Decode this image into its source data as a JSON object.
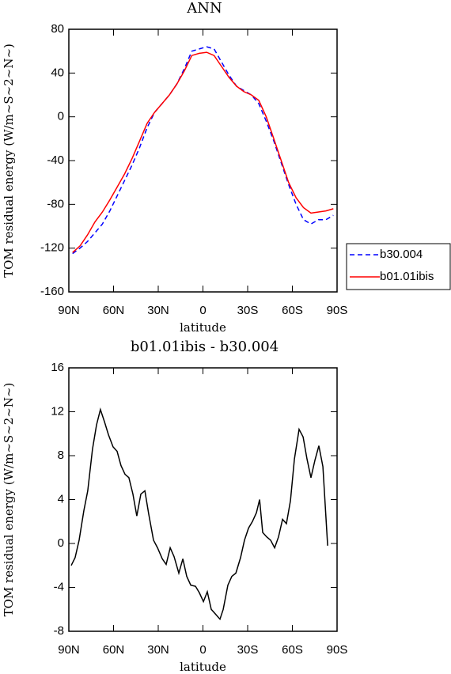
{
  "chart_data": [
    {
      "type": "line",
      "title": "ANN",
      "xlabel": "latitude",
      "ylabel": "TOM residual energy (W/m~S~2~N~)",
      "x": [
        87.5,
        82.5,
        77.5,
        72.5,
        67.5,
        62.5,
        57.5,
        52.5,
        47.5,
        42.5,
        37.5,
        32.5,
        27.5,
        22.5,
        17.5,
        12.5,
        7.5,
        2.5,
        -2.5,
        -7.5,
        -12.5,
        -17.5,
        -22.5,
        -27.5,
        -32.5,
        -37.5,
        -42.5,
        -47.5,
        -52.5,
        -57.5,
        -62.5,
        -67.5,
        -72.5,
        -77.5,
        -82.5,
        -87.5
      ],
      "series": [
        {
          "name": "b30.004",
          "color": "#0000ff",
          "dash": true,
          "values": [
            -125,
            -120,
            -114,
            -106,
            -98,
            -86,
            -72,
            -58,
            -44,
            -28,
            -10,
            4,
            12,
            20,
            30,
            44,
            60,
            62,
            64,
            62,
            50,
            38,
            28,
            24,
            20,
            12,
            -4,
            -22,
            -42,
            -62,
            -80,
            -94,
            -98,
            -94,
            -94,
            -90
          ]
        },
        {
          "name": "b01.01ibis",
          "color": "#ff0000",
          "dash": false,
          "values": [
            -124,
            -118,
            -108,
            -96,
            -87,
            -76,
            -64,
            -52,
            -38,
            -22,
            -6,
            4,
            12,
            20,
            30,
            42,
            56,
            58,
            59,
            56,
            46,
            36,
            28,
            23,
            20,
            15,
            0,
            -20,
            -40,
            -60,
            -74,
            -83,
            -88,
            -87,
            -86,
            -84
          ]
        }
      ],
      "xlim": [
        90,
        -90
      ],
      "xticks": [
        {
          "value": 90,
          "label": "90N"
        },
        {
          "value": 60,
          "label": "60N"
        },
        {
          "value": 30,
          "label": "30N"
        },
        0,
        {
          "value": -30,
          "label": "30S"
        },
        {
          "value": -60,
          "label": "60S"
        },
        {
          "value": -90,
          "label": "90S"
        }
      ],
      "ylim": [
        -160,
        80
      ],
      "yticks": [
        -160,
        -120,
        -80,
        -40,
        0,
        40,
        80
      ],
      "legend": "right"
    },
    {
      "type": "line",
      "title": "b01.01ibis - b30.004",
      "xlabel": "latitude",
      "ylabel": "TOM residual energy (W/m~S~2~N~)",
      "x": [
        88.4,
        85.8,
        83.1,
        79.9,
        77.3,
        74.1,
        71.4,
        68.8,
        66.1,
        63.4,
        60.3,
        57.6,
        55.0,
        52.3,
        49.7,
        47.0,
        44.4,
        41.7,
        39.0,
        36.4,
        33.2,
        30.5,
        27.3,
        24.7,
        22.0,
        19.4,
        16.2,
        13.5,
        10.9,
        8.2,
        5.0,
        2.4,
        -0.3,
        -2.9,
        -5.6,
        -8.2,
        -11.4,
        -13.6,
        -16.7,
        -19.4,
        -22.1,
        -25.2,
        -27.9,
        -30.6,
        -33.2,
        -35.9,
        -38.0,
        -40.1,
        -42.8,
        -45.4,
        -48.1,
        -50.7,
        -53.4,
        -56.0,
        -58.7,
        -61.4,
        -64.5,
        -67.2,
        -69.8,
        -72.5,
        -75.2,
        -77.8,
        -80.5,
        -83.7
      ],
      "series": [
        {
          "color": "#000000",
          "dash": false,
          "values": [
            -2.0,
            -1.3,
            0.3,
            3.0,
            4.8,
            8.6,
            10.8,
            12.2,
            11.1,
            9.9,
            8.8,
            8.4,
            7.1,
            6.3,
            6.0,
            4.5,
            2.5,
            4.5,
            4.8,
            2.7,
            0.3,
            -0.4,
            -1.4,
            -1.9,
            -0.4,
            -1.2,
            -2.7,
            -1.4,
            -3.0,
            -3.8,
            -3.9,
            -4.5,
            -5.3,
            -4.4,
            -6.0,
            -6.4,
            -6.9,
            -6.0,
            -3.8,
            -3.0,
            -2.7,
            -1.3,
            0.3,
            1.4,
            2.0,
            2.8,
            4.0,
            1.0,
            0.6,
            0.3,
            -0.4,
            0.6,
            2.2,
            1.8,
            3.9,
            7.7,
            10.4,
            9.7,
            7.7,
            6.0,
            7.6,
            8.9,
            7.0,
            -0.2
          ]
        }
      ],
      "xlim": [
        90,
        -90
      ],
      "xticks": [
        {
          "value": 90,
          "label": "90N"
        },
        {
          "value": 60,
          "label": "60N"
        },
        {
          "value": 30,
          "label": "30N"
        },
        0,
        {
          "value": -30,
          "label": "30S"
        },
        {
          "value": -60,
          "label": "60S"
        },
        {
          "value": -90,
          "label": "90S"
        }
      ],
      "ylim": [
        -8,
        16
      ],
      "yticks": [
        -8,
        -4,
        0,
        4,
        8,
        12,
        16
      ]
    }
  ]
}
